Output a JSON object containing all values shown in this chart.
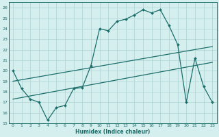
{
  "xlabel": "Humidex (Indice chaleur)",
  "xlim": [
    -0.5,
    23.5
  ],
  "ylim": [
    15,
    26.5
  ],
  "yticks": [
    15,
    16,
    17,
    18,
    19,
    20,
    21,
    22,
    23,
    24,
    25,
    26
  ],
  "xticks": [
    0,
    1,
    2,
    3,
    4,
    5,
    6,
    7,
    8,
    9,
    10,
    11,
    12,
    13,
    14,
    15,
    16,
    17,
    18,
    19,
    20,
    21,
    22,
    23
  ],
  "xtick_labels": [
    "0",
    "1",
    "2",
    "3",
    "4",
    "5",
    "6",
    "7",
    "8",
    "9",
    "10",
    "11",
    "12",
    "13",
    "14",
    "15",
    "16",
    "17",
    "18",
    "19",
    "20",
    "21",
    "22",
    "23"
  ],
  "bg_color": "#d5eeee",
  "line_color": "#1a6e6a",
  "grid_color": "#aed4d4",
  "line1_x": [
    0,
    1,
    2,
    3,
    4,
    5,
    6,
    7,
    8,
    9,
    10,
    11,
    12,
    13,
    14,
    15,
    16,
    17,
    18,
    19,
    20,
    21,
    22,
    23
  ],
  "line1_y": [
    20.0,
    18.3,
    17.3,
    17.0,
    15.3,
    16.5,
    16.7,
    18.3,
    18.4,
    20.5,
    24.0,
    23.8,
    24.7,
    24.9,
    25.3,
    25.8,
    25.5,
    25.8,
    24.3,
    22.5,
    17.0,
    21.2,
    18.5,
    17.0
  ],
  "line2_x": [
    0,
    23
  ],
  "line2_y": [
    19.0,
    22.3
  ],
  "line3_x": [
    0,
    23
  ],
  "line3_y": [
    17.3,
    20.8
  ]
}
